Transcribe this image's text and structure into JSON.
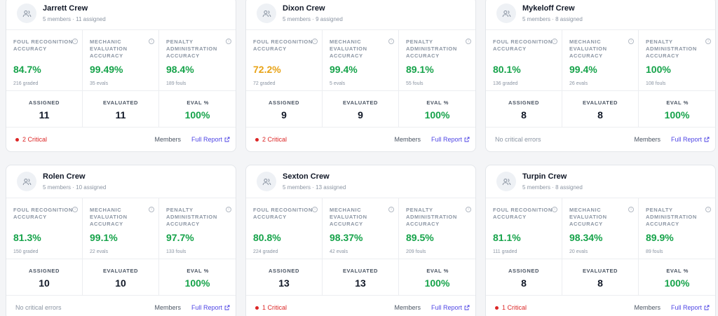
{
  "labels": {
    "foul": "FOUL RECOGNITION ACCURACY",
    "mech": "MECHANIC EVALUATION ACCURACY",
    "pen": "PENALTY ADMINISTRATION ACCURACY",
    "assigned": "ASSIGNED",
    "evaluated": "EVALUATED",
    "evalpct": "EVAL %",
    "members": "Members",
    "report": "Full Report"
  },
  "colors": {
    "good": "#16a34a",
    "warn": "#e8a317",
    "critical": "#dc2626",
    "link": "#4f46e5"
  },
  "icons": {
    "crew": "users-icon",
    "info": "info-icon",
    "external": "external-link-icon"
  },
  "crews": [
    {
      "name": "Jarrett Crew",
      "sub": "5 members · 11 assigned",
      "foul": "84.7%",
      "foul_tone": "good",
      "foul_sub": "216 graded",
      "mech": "99.49%",
      "mech_sub": "35 evals",
      "pen": "98.4%",
      "pen_sub": "189 fouls",
      "assigned": "11",
      "evaluated": "11",
      "evalpct": "100%",
      "critical": "2 Critical",
      "has_critical": true
    },
    {
      "name": "Dixon Crew",
      "sub": "5 members · 9 assigned",
      "foul": "72.2%",
      "foul_tone": "warn",
      "foul_sub": "72 graded",
      "mech": "99.4%",
      "mech_sub": "5 evals",
      "pen": "89.1%",
      "pen_sub": "55 fouls",
      "assigned": "9",
      "evaluated": "9",
      "evalpct": "100%",
      "critical": "2 Critical",
      "has_critical": true
    },
    {
      "name": "Mykeloff Crew",
      "sub": "5 members · 8 assigned",
      "foul": "80.1%",
      "foul_tone": "good",
      "foul_sub": "136 graded",
      "mech": "99.4%",
      "mech_sub": "26 evals",
      "pen": "100%",
      "pen_sub": "108 fouls",
      "assigned": "8",
      "evaluated": "8",
      "evalpct": "100%",
      "critical": "No critical errors",
      "has_critical": false
    },
    {
      "name": "Rolen Crew",
      "sub": "5 members · 10 assigned",
      "foul": "81.3%",
      "foul_tone": "good",
      "foul_sub": "150 graded",
      "mech": "99.1%",
      "mech_sub": "22 evals",
      "pen": "97.7%",
      "pen_sub": "133 fouls",
      "assigned": "10",
      "evaluated": "10",
      "evalpct": "100%",
      "critical": "No critical errors",
      "has_critical": false
    },
    {
      "name": "Sexton Crew",
      "sub": "5 members · 13 assigned",
      "foul": "80.8%",
      "foul_tone": "good",
      "foul_sub": "224 graded",
      "mech": "98.37%",
      "mech_sub": "42 evals",
      "pen": "89.5%",
      "pen_sub": "209 fouls",
      "assigned": "13",
      "evaluated": "13",
      "evalpct": "100%",
      "critical": "1 Critical",
      "has_critical": true
    },
    {
      "name": "Turpin Crew",
      "sub": "5 members · 8 assigned",
      "foul": "81.1%",
      "foul_tone": "good",
      "foul_sub": "111 graded",
      "mech": "98.34%",
      "mech_sub": "20 evals",
      "pen": "89.9%",
      "pen_sub": "89 fouls",
      "assigned": "8",
      "evaluated": "8",
      "evalpct": "100%",
      "critical": "1 Critical",
      "has_critical": true
    }
  ]
}
